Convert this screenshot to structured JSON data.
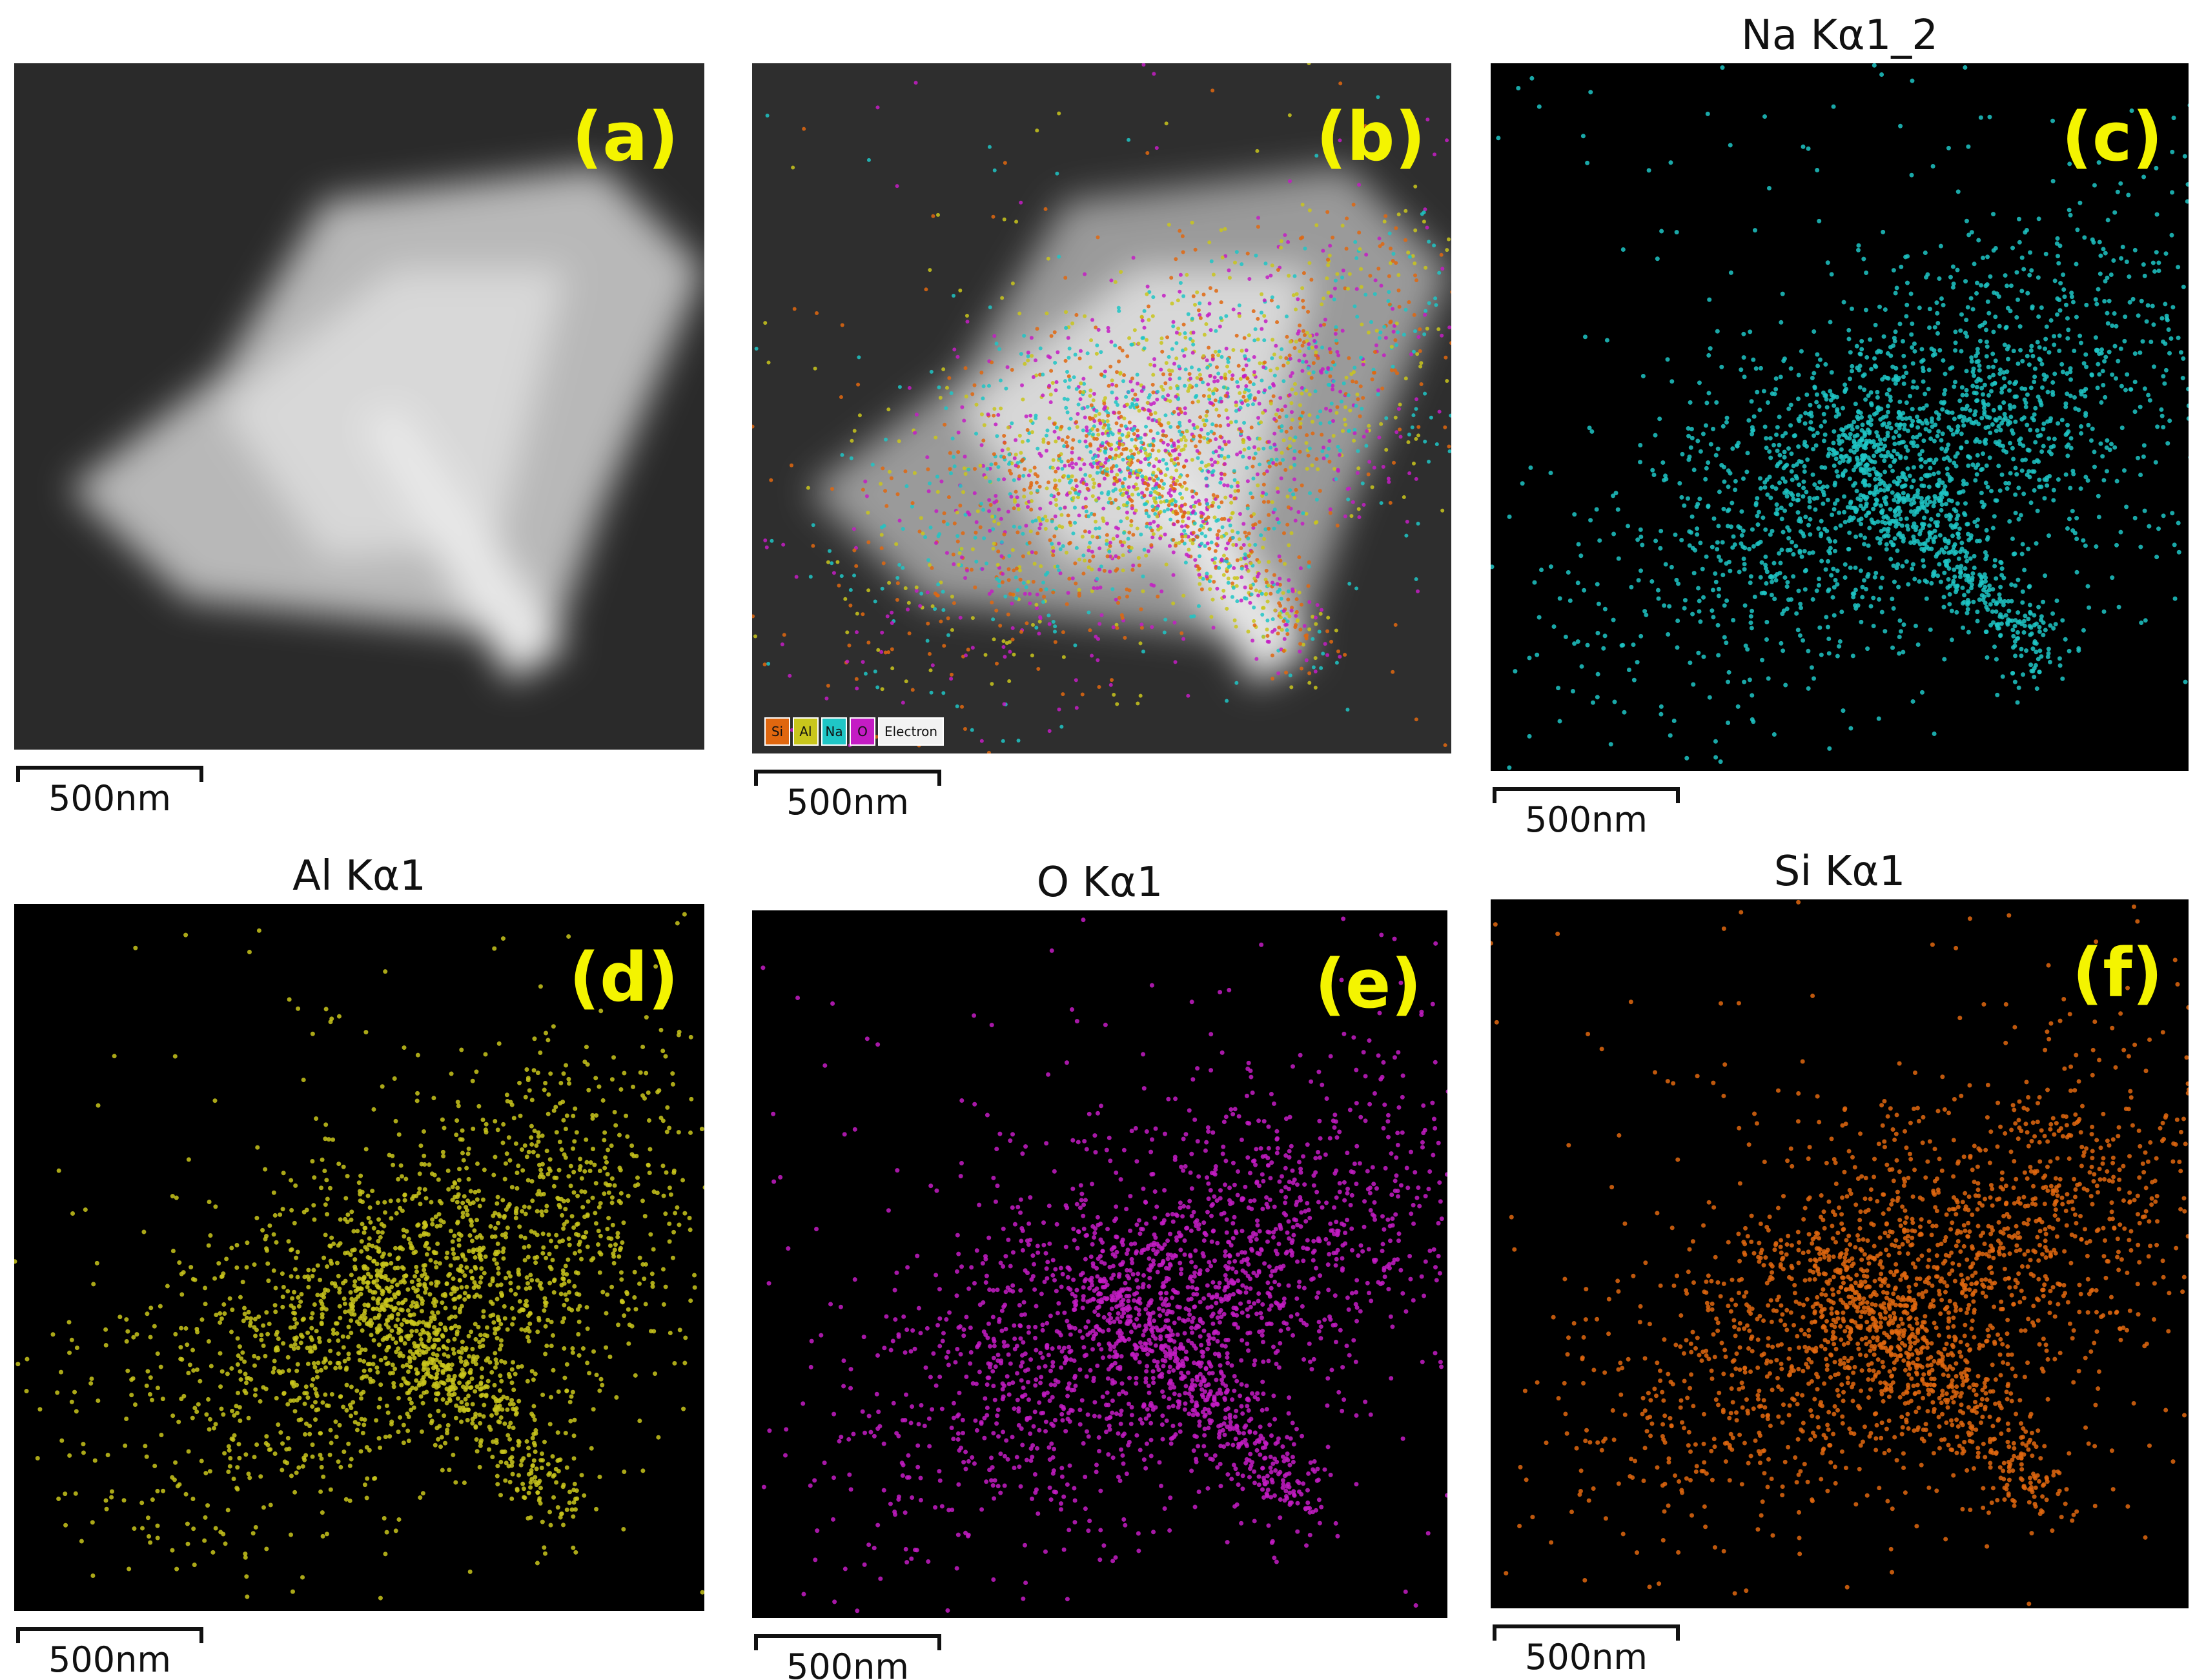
{
  "panels": [
    {
      "label": "(a)",
      "scale_bar": "500nm"
    },
    {
      "label": "(b)",
      "scale_bar": "500nm",
      "legend": [
        "Si",
        "Al",
        "Na",
        "O",
        "Electron"
      ]
    },
    {
      "label": "(c)",
      "title": "Na Kα1_2",
      "scale_bar": "500nm"
    },
    {
      "label": "(d)",
      "title": "Al Kα1",
      "scale_bar": "500nm"
    },
    {
      "label": "(e)",
      "title": "O Kα1",
      "scale_bar": "500nm"
    },
    {
      "label": "(f)",
      "title": "Si Kα1",
      "scale_bar": "500nm"
    }
  ]
}
